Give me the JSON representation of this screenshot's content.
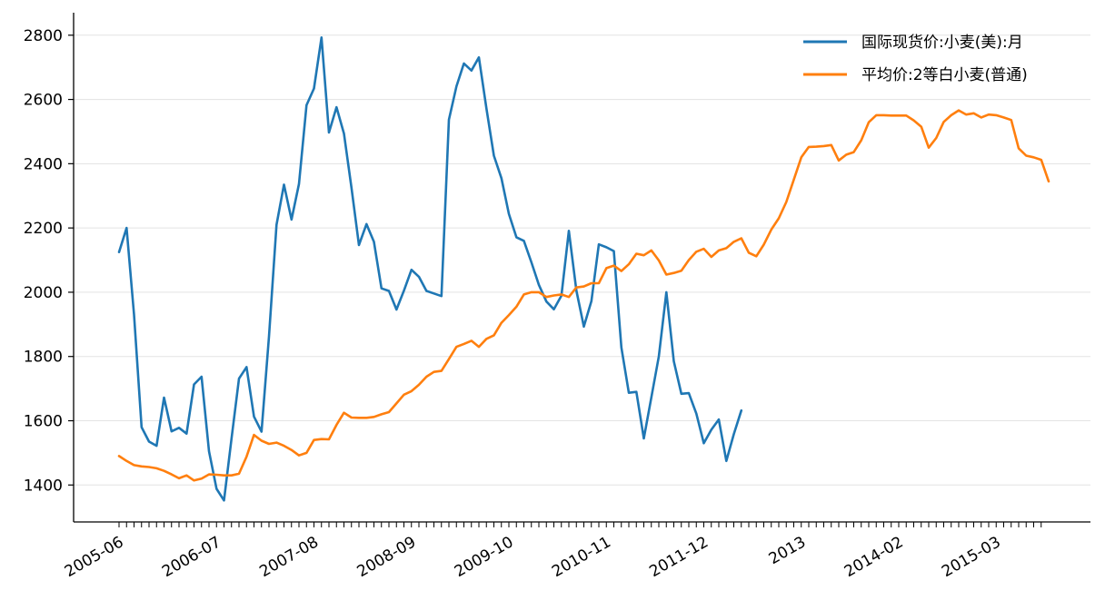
{
  "chart_data": {
    "type": "line",
    "title": "",
    "xlabel": "",
    "ylabel": "",
    "ylim": [
      1285,
      2870
    ],
    "yticks": [
      1400,
      1600,
      1800,
      2000,
      2200,
      2400,
      2600,
      2800
    ],
    "grid": "horizontal",
    "legend_position": "top-right",
    "x_tick_labels": [
      "2005-06",
      "2006-07",
      "2007-08",
      "2008-09",
      "2009-10",
      "2010-11",
      "2011-12",
      "2013",
      "2014-02",
      "2015-03"
    ],
    "x_tick_label_months": [
      0,
      13,
      26,
      39,
      52,
      65,
      78,
      91,
      104,
      117
    ],
    "x_minor_tick_count": 124,
    "series": [
      {
        "name": "国际现货价:小麦(美):月",
        "color": "#1f77b4",
        "start_month": 0,
        "values": [
          2125,
          2200,
          1930,
          1580,
          1535,
          1522,
          1672,
          1567,
          1578,
          1560,
          1713,
          1737,
          1505,
          1388,
          1352,
          1545,
          1731,
          1767,
          1613,
          1566,
          1862,
          2210,
          2335,
          2226,
          2337,
          2582,
          2634,
          2793,
          2497,
          2576,
          2494,
          2325,
          2147,
          2212,
          2157,
          2012,
          2004,
          1946,
          2005,
          2070,
          2048,
          2004,
          1996,
          1988,
          2537,
          2641,
          2712,
          2690,
          2731,
          2572,
          2425,
          2355,
          2244,
          2171,
          2160,
          2093,
          2023,
          1971,
          1947,
          1989,
          2191,
          2005,
          1893,
          1972,
          2149,
          2140,
          2128,
          1828,
          1687,
          1690,
          1545,
          1673,
          1800,
          2000,
          1785,
          1684,
          1686,
          1622,
          1530,
          1572,
          1604,
          1475,
          1558,
          1632
        ]
      },
      {
        "name": "平均价:2等白小麦(普通)",
        "color": "#ff7f0e",
        "start_month": 0,
        "values": [
          1490,
          1475,
          1462,
          1458,
          1456,
          1452,
          1444,
          1433,
          1421,
          1430,
          1414,
          1420,
          1433,
          1432,
          1430,
          1430,
          1435,
          1488,
          1556,
          1538,
          1528,
          1532,
          1522,
          1509,
          1492,
          1500,
          1540,
          1543,
          1542,
          1587,
          1625,
          1610,
          1609,
          1609,
          1612,
          1620,
          1627,
          1654,
          1681,
          1692,
          1712,
          1737,
          1752,
          1755,
          1792,
          1830,
          1839,
          1849,
          1830,
          1855,
          1866,
          1905,
          1929,
          1955,
          1993,
          2000,
          2000,
          1985,
          1990,
          1993,
          1985,
          2015,
          2018,
          2028,
          2028,
          2075,
          2083,
          2066,
          2087,
          2120,
          2115,
          2130,
          2099,
          2055,
          2060,
          2067,
          2100,
          2126,
          2135,
          2110,
          2130,
          2137,
          2157,
          2168,
          2123,
          2112,
          2148,
          2195,
          2230,
          2281,
          2350,
          2420,
          2452,
          2453,
          2455,
          2458,
          2410,
          2428,
          2436,
          2473,
          2529,
          2551,
          2551,
          2550,
          2550,
          2550,
          2535,
          2515,
          2450,
          2480,
          2530,
          2551,
          2566,
          2553,
          2557,
          2544,
          2553,
          2551,
          2544,
          2536,
          2448,
          2425,
          2420,
          2412,
          2345
        ]
      }
    ]
  }
}
